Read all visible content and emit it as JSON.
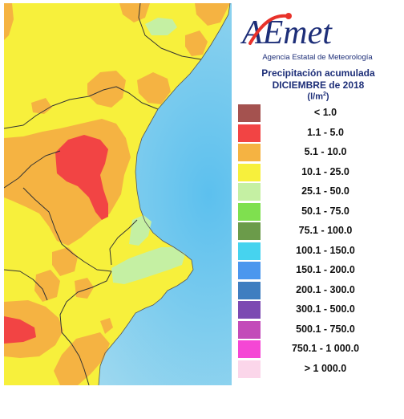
{
  "logo": {
    "letters": "AEmet",
    "agency": "Agencia Estatal de Meteorología"
  },
  "legend": {
    "title_line1": "Precipitación acumulada",
    "title_line2": "DICIEMBRE de 2018",
    "unit": "l/m",
    "unit_sup": "2",
    "items": [
      {
        "label": "< 1.0",
        "color": "#a4524f"
      },
      {
        "label": "1.1 - 5.0",
        "color": "#f24444"
      },
      {
        "label": "5.1 - 10.0",
        "color": "#f5b342"
      },
      {
        "label": "10.1 - 25.0",
        "color": "#f7f03c"
      },
      {
        "label": "25.1 - 50.0",
        "color": "#c5f0a3"
      },
      {
        "label": "50.1 - 75.0",
        "color": "#7fe04f"
      },
      {
        "label": "75.1 - 100.0",
        "color": "#6b9b4a"
      },
      {
        "label": "100.1 - 150.0",
        "color": "#46d3ef"
      },
      {
        "label": "150.1 - 200.0",
        "color": "#4b97ee"
      },
      {
        "label": "200.1 - 300.0",
        "color": "#3f7ec0"
      },
      {
        "label": "300.1 - 500.0",
        "color": "#7c4ab2"
      },
      {
        "label": "500.1 - 750.0",
        "color": "#c34bb9"
      },
      {
        "label": "750.1 - 1 000.0",
        "color": "#f547d5"
      },
      {
        "label": "> 1 000.0",
        "color": "#fbd6ea"
      }
    ]
  },
  "map": {
    "sea_color": "#8fd2ef",
    "land_color": "#f7f03c",
    "orange_color": "#f5b342",
    "red_color": "#f24444",
    "green_color": "#c5f0a3"
  }
}
